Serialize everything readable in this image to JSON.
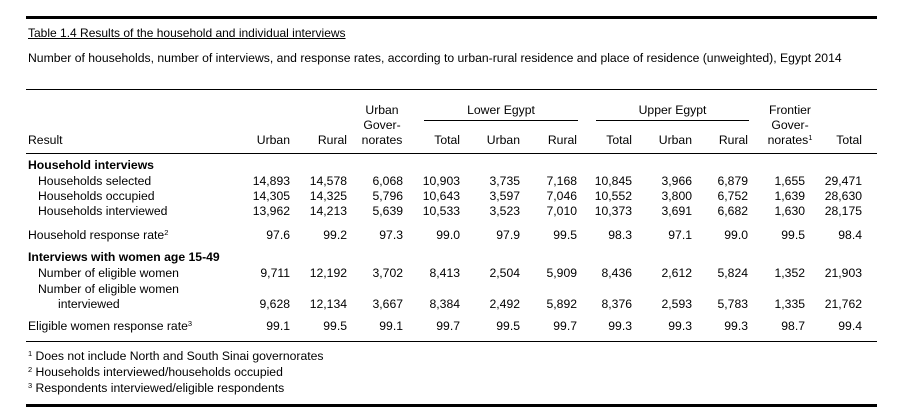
{
  "table": {
    "title": "Table 1.4  Results of the household and individual interviews",
    "subtitle": "Number of households, number of interviews, and response rates, according to urban-rural residence and place of residence (unweighted), Egypt 2014",
    "header": {
      "result": "Result",
      "urban": "Urban",
      "rural": "Rural",
      "urban_gov": [
        "Urban",
        "Gover-",
        "norates"
      ],
      "lower_egypt": "Lower Egypt",
      "upper_egypt": "Upper Egypt",
      "le_total": "Total",
      "le_urban": "Urban",
      "le_rural": "Rural",
      "ue_total": "Total",
      "ue_urban": "Urban",
      "ue_rural": "Rural",
      "frontier": [
        "Frontier",
        "Gover-",
        "norates",
        "1"
      ],
      "total": "Total"
    },
    "sections": {
      "household": "Household interviews",
      "women": "Interviews with women age 15-49"
    },
    "rows": {
      "hh_selected": {
        "label": "Households selected",
        "values": [
          "14,893",
          "14,578",
          "6,068",
          "10,903",
          "3,735",
          "7,168",
          "10,845",
          "3,966",
          "6,879",
          "1,655",
          "29,471"
        ]
      },
      "hh_occupied": {
        "label": "Households occupied",
        "values": [
          "14,305",
          "14,325",
          "5,796",
          "10,643",
          "3,597",
          "7,046",
          "10,552",
          "3,800",
          "6,752",
          "1,639",
          "28,630"
        ]
      },
      "hh_interviewed": {
        "label": "Households interviewed",
        "values": [
          "13,962",
          "14,213",
          "5,639",
          "10,533",
          "3,523",
          "7,010",
          "10,373",
          "3,691",
          "6,682",
          "1,630",
          "28,175"
        ]
      },
      "hh_rate": {
        "label": "Household response rate",
        "sup": "2",
        "values": [
          "97.6",
          "99.2",
          "97.3",
          "99.0",
          "97.9",
          "99.5",
          "98.3",
          "97.1",
          "99.0",
          "99.5",
          "98.4"
        ]
      },
      "w_eligible": {
        "label": "Number of eligible women",
        "values": [
          "9,711",
          "12,192",
          "3,702",
          "8,413",
          "2,504",
          "5,909",
          "8,436",
          "2,612",
          "5,824",
          "1,352",
          "21,903"
        ]
      },
      "w_interviewed": {
        "label_line1": "Number of eligible women",
        "label_line2": "interviewed",
        "values": [
          "9,628",
          "12,134",
          "3,667",
          "8,384",
          "2,492",
          "5,892",
          "8,376",
          "2,593",
          "5,783",
          "1,335",
          "21,762"
        ]
      },
      "w_rate": {
        "label": "Eligible women response rate",
        "sup": "3",
        "values": [
          "99.1",
          "99.5",
          "99.1",
          "99.7",
          "99.5",
          "99.7",
          "99.3",
          "99.3",
          "99.3",
          "98.7",
          "99.4"
        ]
      }
    },
    "footnotes": [
      {
        "mark": "1",
        "text": " Does not include North and South Sinai governorates"
      },
      {
        "mark": "2",
        "text": " Households interviewed/households occupied"
      },
      {
        "mark": "3",
        "text": " Respondents interviewed/eligible respondents"
      }
    ]
  }
}
